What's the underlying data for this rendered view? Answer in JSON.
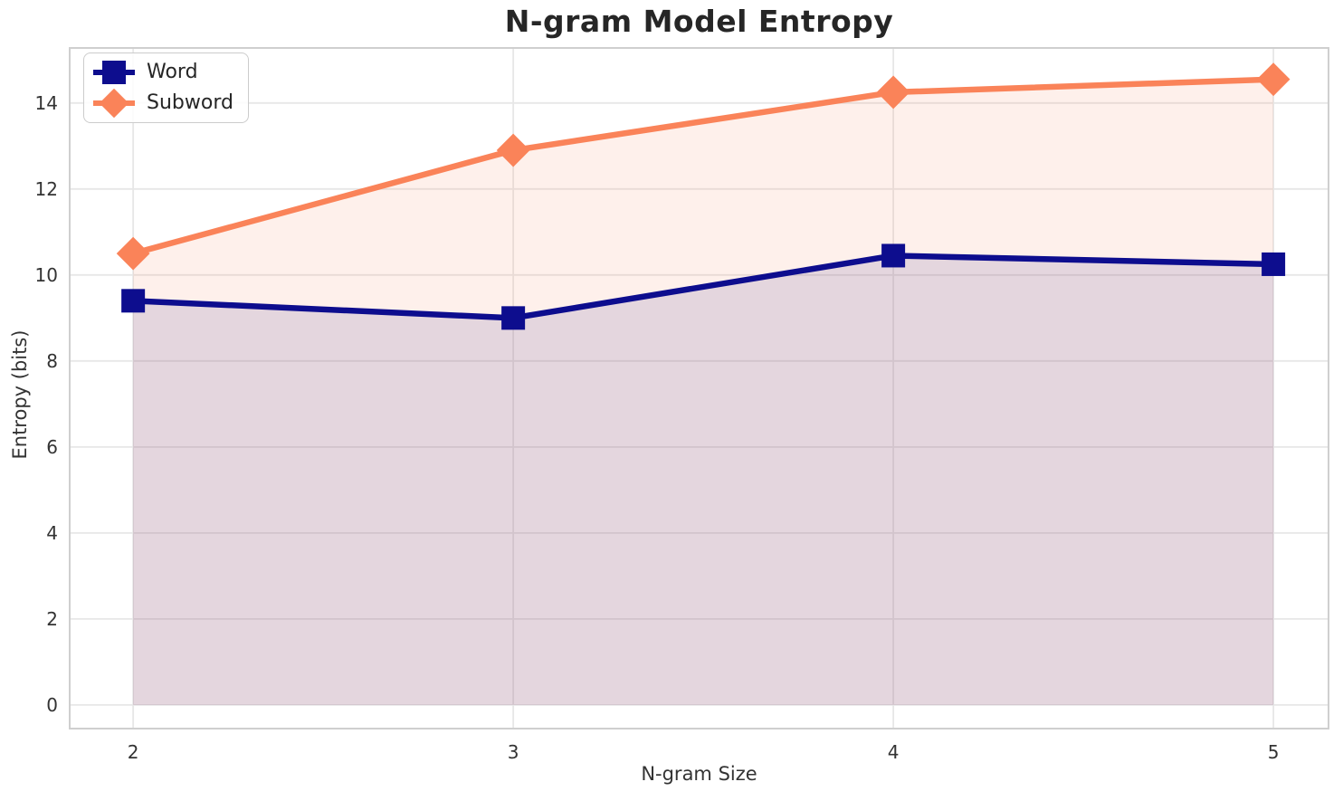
{
  "title": "N-gram Model Entropy",
  "chart_data": {
    "type": "line",
    "x": [
      2,
      3,
      4,
      5
    ],
    "series": [
      {
        "name": "Word",
        "values": [
          9.4,
          9.0,
          10.45,
          10.25
        ],
        "color": "#0d0d8e",
        "marker": "square"
      },
      {
        "name": "Subword",
        "values": [
          10.5,
          12.9,
          14.25,
          14.55
        ],
        "color": "#fa8359",
        "marker": "diamond"
      }
    ],
    "xlabel": "N-gram Size",
    "ylabel": "Entropy (bits)",
    "xticks": [
      "2",
      "3",
      "4",
      "5"
    ],
    "yticks": [
      "0",
      "2",
      "4",
      "6",
      "8",
      "10",
      "12",
      "14"
    ],
    "xtick_values": [
      2,
      3,
      4,
      5
    ],
    "ytick_values": [
      0,
      2,
      4,
      6,
      8,
      10,
      12,
      14
    ],
    "xlim": [
      1.833,
      5.145
    ],
    "ylim": [
      -0.55,
      15.28
    ],
    "grid": true,
    "legend_position": "upper left",
    "area_fill": true,
    "fill_alpha": 0.12,
    "colors": {
      "grid": "#e7e7e7",
      "spine": "#cfcfcf",
      "tick_text": "#333333",
      "title_text": "#262626",
      "background": "#ffffff"
    }
  }
}
